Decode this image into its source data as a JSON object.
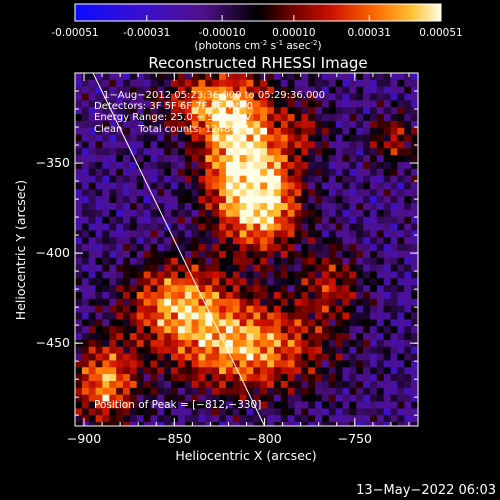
{
  "colorbar": {
    "ticks": [
      "-0.00051",
      "-0.00031",
      "-0.00010",
      "0.00010",
      "0.00031",
      "0.00051"
    ],
    "tick_values": [
      -0.00051,
      -0.00031,
      -0.0001,
      0.0001,
      0.00031,
      0.00051
    ],
    "range": [
      -0.00051,
      0.00051
    ],
    "units_label": "(photons cm",
    "units_exp1": "-2",
    "units_mid": " s",
    "units_exp2": "-1",
    "units_mid2": " asec",
    "units_exp3": "-2",
    "units_end": ")"
  },
  "chart_data": {
    "type": "heatmap",
    "title": "Reconstructed RHESSI Image",
    "xlabel": "Heliocentric X (arcsec)",
    "ylabel": "Heliocentric Y (arcsec)",
    "xlim": [
      -905,
      -715
    ],
    "ylim": [
      -496,
      -300
    ],
    "x_ticks": [
      -900,
      -850,
      -800,
      -750
    ],
    "x_tick_labels": [
      "−900",
      "−850",
      "−800",
      "−750"
    ],
    "y_ticks": [
      -350,
      -400,
      -450
    ],
    "y_tick_labels": [
      "−350",
      "−400",
      "−450"
    ],
    "limb_line": [
      [
        -895,
        -300
      ],
      [
        -800,
        -496
      ]
    ],
    "emission_sources": [
      {
        "x": -815,
        "y": -345,
        "amp": 1.0,
        "sx": 16,
        "sy": 28
      },
      {
        "x": -800,
        "y": -372,
        "amp": 0.7,
        "sx": 14,
        "sy": 18
      },
      {
        "x": -835,
        "y": -315,
        "amp": 0.6,
        "sx": 18,
        "sy": 12
      },
      {
        "x": -812,
        "y": -450,
        "amp": 0.85,
        "sx": 30,
        "sy": 18
      },
      {
        "x": -850,
        "y": -425,
        "amp": 0.75,
        "sx": 20,
        "sy": 16
      },
      {
        "x": -890,
        "y": -470,
        "amp": 0.8,
        "sx": 12,
        "sy": 16
      },
      {
        "x": -765,
        "y": -415,
        "amp": 0.45,
        "sx": 12,
        "sy": 14
      },
      {
        "x": -730,
        "y": -335,
        "amp": 0.45,
        "sx": 10,
        "sy": 10
      },
      {
        "x": -780,
        "y": -330,
        "amp": 0.35,
        "sx": 10,
        "sy": 12
      }
    ],
    "annotations": {
      "time": "1−Aug−2012 05:23:36.000 to 05:29:36.000",
      "detectors": "Detectors: 3F 5F 6F 7F 8F, Att 0",
      "energy": "Energy Range: 25.0 − 50.0 keV",
      "method": "Clean     Total counts: 1248404",
      "peak": "Position of Peak = [−812,−330]"
    }
  },
  "footer": {
    "timestamp": "13−May−2022 06:03"
  }
}
